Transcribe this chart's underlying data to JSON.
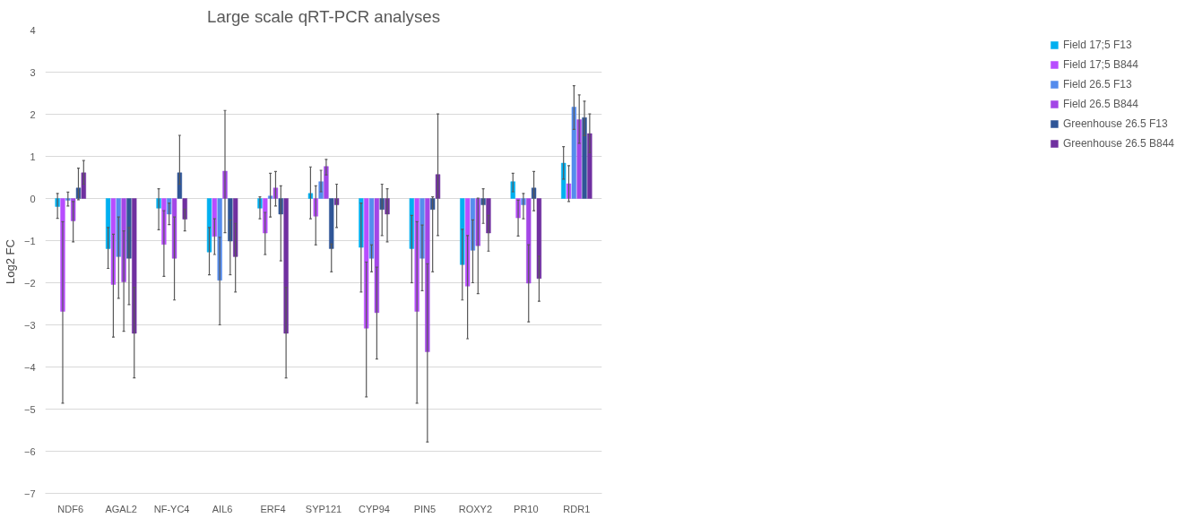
{
  "chart_data": {
    "type": "bar",
    "title": "Large scale qRT-PCR analyses",
    "ylabel": "Log2 FC",
    "categories": [
      "NDF6",
      "AGAL2",
      "NF-YC4",
      "AIL6",
      "ERF4",
      "SYP121",
      "CYP94",
      "PIN5",
      "ROXY2",
      "PR10",
      "RDR1"
    ],
    "ylim": [
      -7,
      4
    ],
    "yticks": [
      -7,
      -6,
      -5,
      -4,
      -3,
      -2,
      -1,
      0,
      1,
      2,
      3,
      4
    ],
    "grid": "y",
    "legend": "right",
    "series": [
      {
        "name": "Field 17;5 F13",
        "color": "#00b0f0",
        "values": [
          -0.19,
          -1.19,
          -0.23,
          -1.27,
          -0.23,
          0.12,
          -1.16,
          -1.19,
          -1.57,
          0.4,
          0.84
        ],
        "errors": [
          [
            -0.47,
            0.12
          ],
          [
            -1.66,
            -0.69
          ],
          [
            -0.74,
            0.23
          ],
          [
            -1.81,
            -0.69
          ],
          [
            -0.48,
            0.04
          ],
          [
            -0.48,
            0.75
          ],
          [
            -2.22,
            -0.11
          ],
          [
            -2.0,
            -0.4
          ],
          [
            -2.41,
            -0.73
          ],
          [
            0.16,
            0.6
          ],
          [
            0.46,
            1.23
          ]
        ]
      },
      {
        "name": "Field 17;5 B844",
        "color": "#b84dff",
        "values": [
          -2.68,
          -2.04,
          -1.09,
          -0.9,
          -0.82,
          -0.42,
          -3.08,
          -2.68,
          -2.08,
          -0.46,
          0.35
        ],
        "errors": [
          [
            -4.86,
            -0.55
          ],
          [
            -3.29,
            -0.85
          ],
          [
            -1.85,
            -0.29
          ],
          [
            -1.33,
            -0.48
          ],
          [
            -1.33,
            -0.33
          ],
          [
            -1.1,
            0.3
          ],
          [
            -4.71,
            -1.51
          ],
          [
            -4.86,
            -0.55
          ],
          [
            -3.33,
            -0.88
          ],
          [
            -0.89,
            -0.04
          ],
          [
            -0.07,
            0.78
          ]
        ]
      },
      {
        "name": "Field 26.5 F13",
        "color": "#558ced",
        "values": [
          -0.04,
          -1.38,
          -0.37,
          -1.94,
          0.06,
          0.4,
          -1.42,
          -1.42,
          -1.23,
          -0.15,
          2.17
        ],
        "errors": [
          [
            -0.18,
            0.15
          ],
          [
            -2.37,
            -0.44
          ],
          [
            -0.62,
            -0.11
          ],
          [
            -3.0,
            -0.92
          ],
          [
            -0.44,
            0.6
          ],
          [
            0.16,
            0.67
          ],
          [
            -1.74,
            -1.1
          ],
          [
            -2.19,
            -0.63
          ],
          [
            -2.0,
            -0.51
          ],
          [
            -0.48,
            0.12
          ],
          [
            1.64,
            2.68
          ]
        ]
      },
      {
        "name": "Field 26.5 B844",
        "color": "#a346e6",
        "values": [
          -0.53,
          -1.98,
          -1.42,
          0.65,
          0.25,
          0.76,
          -2.71,
          -3.64,
          -1.12,
          -2.01,
          1.87
        ],
        "errors": [
          [
            -1.03,
            -0.07
          ],
          [
            -3.15,
            -0.77
          ],
          [
            -2.41,
            -0.44
          ],
          [
            -0.81,
            2.09
          ],
          [
            -0.18,
            0.64
          ],
          [
            0.56,
            0.93
          ],
          [
            -3.81,
            -1.63
          ],
          [
            -5.78,
            -1.55
          ],
          [
            -2.26,
            0.01
          ],
          [
            -2.93,
            -1.1
          ],
          [
            1.31,
            2.46
          ]
        ]
      },
      {
        "name": "Greenhouse 26.5 F13",
        "color": "#2f5597",
        "values": [
          0.25,
          -1.42,
          0.61,
          -1.01,
          -0.37,
          -1.19,
          -0.26,
          -0.26,
          -0.15,
          0.25,
          1.92
        ],
        "errors": [
          [
            -0.03,
            0.72
          ],
          [
            -2.52,
            -0.69
          ],
          [
            0.34,
            1.5
          ],
          [
            -1.81,
            -0.51
          ],
          [
            -1.48,
            0.3
          ],
          [
            -1.74,
            -1.08
          ],
          [
            -0.88,
            0.34
          ],
          [
            -1.74,
            0.04
          ],
          [
            -0.59,
            0.23
          ],
          [
            -0.29,
            0.64
          ],
          [
            1.49,
            2.31
          ]
        ]
      },
      {
        "name": "Greenhouse 26.5 B844",
        "color": "#7030a0",
        "values": [
          0.61,
          -3.2,
          -0.49,
          -1.38,
          -3.2,
          -0.15,
          -0.37,
          0.57,
          -0.82,
          -1.9,
          1.54
        ],
        "errors": [
          [
            0.34,
            0.9
          ],
          [
            -4.26,
            -2.11
          ],
          [
            -0.77,
            -0.25
          ],
          [
            -2.22,
            -0.59
          ],
          [
            -4.26,
            -2.11
          ],
          [
            -0.69,
            0.34
          ],
          [
            -1.03,
            0.23
          ],
          [
            -0.88,
            2.01
          ],
          [
            -1.25,
            -0.4
          ],
          [
            -2.44,
            -1.37
          ],
          [
            1.09,
            2.01
          ]
        ]
      }
    ]
  }
}
